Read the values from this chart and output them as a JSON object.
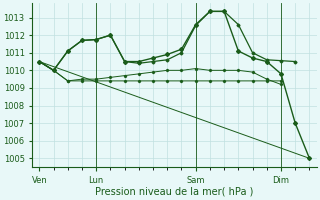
{
  "background_color": "#e8f8f8",
  "grid_color": "#c0e0e0",
  "line_color": "#1a5c1a",
  "title": "Pression niveau de la mer( hPa )",
  "ylim": [
    1004.5,
    1013.8
  ],
  "yticks": [
    1005,
    1006,
    1007,
    1008,
    1009,
    1010,
    1011,
    1012,
    1013
  ],
  "day_labels": [
    "Ven",
    "Lun",
    "Sam",
    "Dim"
  ],
  "day_positions": [
    0,
    4,
    11,
    17
  ],
  "xlim": [
    -0.5,
    19.5
  ],
  "series1_x": [
    0,
    1,
    2,
    3,
    4,
    5,
    6,
    7,
    8,
    9,
    10,
    11,
    12,
    13,
    14,
    15,
    16,
    17
  ],
  "series1_y": [
    1010.5,
    1010.0,
    1009.4,
    1009.4,
    1009.4,
    1009.4,
    1009.4,
    1009.4,
    1009.4,
    1009.4,
    1009.4,
    1009.4,
    1009.4,
    1009.4,
    1009.4,
    1009.4,
    1009.4,
    1009.4
  ],
  "series2_x": [
    0,
    1,
    2,
    3,
    4,
    5,
    6,
    7,
    8,
    9,
    10,
    11,
    12,
    13,
    14,
    15,
    16,
    17
  ],
  "series2_y": [
    1010.5,
    1010.0,
    1009.4,
    1009.5,
    1009.5,
    1009.6,
    1009.7,
    1009.8,
    1009.9,
    1010.0,
    1010.0,
    1010.1,
    1010.0,
    1010.0,
    1010.0,
    1009.9,
    1009.5,
    1009.2
  ],
  "series3_x": [
    0,
    1,
    2,
    3,
    4,
    5,
    6,
    7,
    8,
    9,
    10,
    11,
    12,
    13,
    14,
    15,
    16,
    17,
    18
  ],
  "series3_y": [
    1010.5,
    1010.0,
    1011.1,
    1011.7,
    1011.75,
    1012.0,
    1010.5,
    1010.4,
    1010.5,
    1010.6,
    1011.0,
    1012.55,
    1013.35,
    1013.35,
    1012.6,
    1011.0,
    1010.6,
    1010.55,
    1010.5
  ],
  "series4_x": [
    0,
    1,
    2,
    3,
    4,
    5,
    6,
    7,
    8,
    9,
    10,
    11,
    12,
    13,
    14,
    15,
    16,
    17,
    18,
    19
  ],
  "series4_y": [
    1010.5,
    1010.0,
    1011.1,
    1011.7,
    1011.75,
    1012.0,
    1010.5,
    1010.5,
    1010.7,
    1010.9,
    1011.2,
    1012.6,
    1013.35,
    1013.35,
    1011.1,
    1010.7,
    1010.5,
    1009.8,
    1007.0,
    1005.0
  ],
  "series5_x": [
    0,
    19
  ],
  "series5_y": [
    1010.5,
    1005.0
  ],
  "vlines": [
    4,
    11,
    17
  ]
}
